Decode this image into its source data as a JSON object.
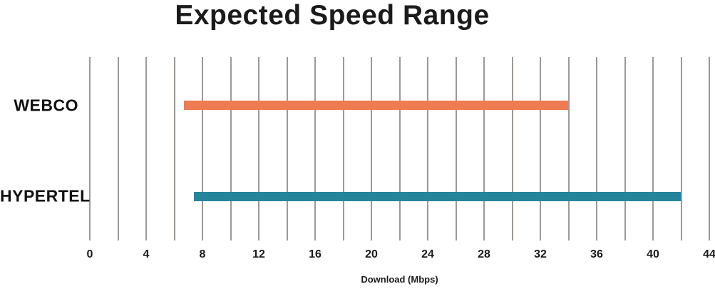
{
  "title": "Expected Speed Range",
  "chart_data": {
    "type": "bar",
    "orientation": "horizontal-range",
    "title": "Expected Speed Range",
    "xlabel": "Download (Mbps)",
    "ylabel": "",
    "categories": [
      "WEBCO",
      "HYPERTEL"
    ],
    "series": [
      {
        "name": "WEBCO",
        "range_min": 6.7,
        "range_max": 34,
        "color": "#EF7B52"
      },
      {
        "name": "HYPERTEL",
        "range_min": 7.4,
        "range_max": 42,
        "color": "#26849B"
      }
    ],
    "xlim": [
      0,
      44
    ],
    "grid": true,
    "grid_step": 2,
    "tick_step": 4,
    "tick_labels": [
      "0",
      "4",
      "8",
      "12",
      "16",
      "20",
      "24",
      "28",
      "32",
      "36",
      "40",
      "44"
    ],
    "legend": false,
    "gridline_color": "#9E9996",
    "text_color": "#1b1b1b",
    "background": "#FFFFFF"
  }
}
